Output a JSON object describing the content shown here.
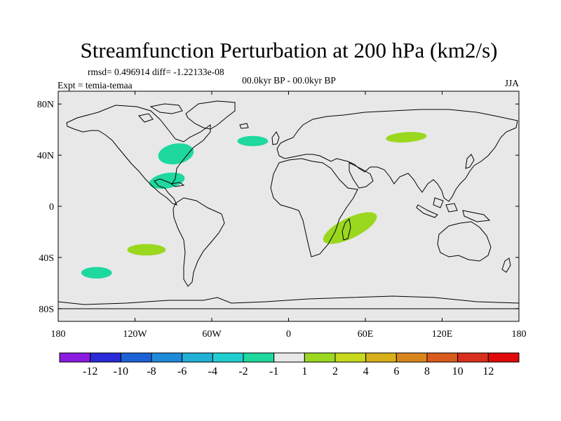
{
  "chart_data": {
    "type": "heatmap",
    "title": "Streamfunction Perturbation at 200 hPa (km2/s)",
    "stats": "rmsd= 0.496914 diff= -1.22133e-08",
    "left_label": "Expt = temia-temaa",
    "center_label": "00.0kyr BP - 00.0kyr BP",
    "right_label": "JJA",
    "xlim": [
      -180,
      180
    ],
    "ylim": [
      -90,
      90
    ],
    "x_ticks": [
      {
        "lon": -180,
        "label": "180"
      },
      {
        "lon": -120,
        "label": "120W"
      },
      {
        "lon": -60,
        "label": "60W"
      },
      {
        "lon": 0,
        "label": "0"
      },
      {
        "lon": 60,
        "label": "60E"
      },
      {
        "lon": 120,
        "label": "120E"
      },
      {
        "lon": 180,
        "label": "180"
      }
    ],
    "y_ticks": [
      {
        "lat": 80,
        "label": "80N"
      },
      {
        "lat": 40,
        "label": "40N"
      },
      {
        "lat": 0,
        "label": "0"
      },
      {
        "lat": -40,
        "label": "40S"
      },
      {
        "lat": -80,
        "label": "80S"
      }
    ],
    "colorbar": {
      "levels": [
        "-12",
        "-10",
        "-8",
        "-6",
        "-4",
        "-2",
        "-1",
        "1",
        "2",
        "4",
        "6",
        "8",
        "10",
        "12"
      ],
      "colors": [
        "#8a1be0",
        "#2a2ad8",
        "#1c62d6",
        "#1f8ad8",
        "#21b0d6",
        "#20ced0",
        "#1fd89e",
        "#e8e8e8",
        "#9ad81f",
        "#c8d81c",
        "#d8b01c",
        "#d8861c",
        "#d85a1c",
        "#d8301c",
        "#e00a0a"
      ]
    },
    "anomalies": [
      {
        "name": "north-america-east",
        "lon": -88,
        "lat": 41,
        "rlon": 14,
        "rlat": 8,
        "rot": -10,
        "value": -1.5
      },
      {
        "name": "gulf-of-mexico",
        "lon": -95,
        "lat": 20,
        "rlon": 14,
        "rlat": 6,
        "rot": -10,
        "value": -1.5
      },
      {
        "name": "north-atlantic",
        "lon": -28,
        "lat": 51,
        "rlon": 12,
        "rlat": 4,
        "rot": 0,
        "value": -1.5
      },
      {
        "name": "central-asia",
        "lon": 92,
        "lat": 54,
        "rlon": 16,
        "rlat": 4,
        "rot": -4,
        "value": 1.5
      },
      {
        "name": "indian-ocean",
        "lon": 48,
        "lat": -17,
        "rlon": 23,
        "rlat": 8,
        "rot": -26,
        "value": 1.5
      },
      {
        "name": "south-pacific-east",
        "lon": -111,
        "lat": -34,
        "rlon": 15,
        "rlat": 4.5,
        "rot": 0,
        "value": 1.5
      },
      {
        "name": "south-pacific-west",
        "lon": -150,
        "lat": -52,
        "rlon": 12,
        "rlat": 4.5,
        "rot": 0,
        "value": -1.5
      }
    ],
    "land_color": "#e8e8e8",
    "coast_color": "#000000"
  }
}
